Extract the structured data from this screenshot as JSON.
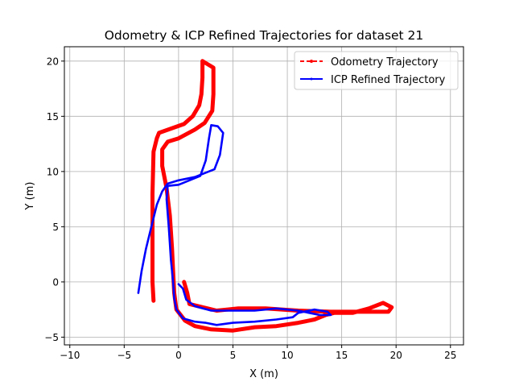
{
  "chart_data": {
    "type": "line",
    "title": "Odometry & ICP Refined Trajectories for dataset 21",
    "xlabel": "X (m)",
    "ylabel": "Y (m)",
    "xlim": [
      -10.5,
      26.2
    ],
    "ylim": [
      -5.7,
      21.3
    ],
    "xticks": [
      -10,
      -5,
      0,
      5,
      10,
      15,
      20,
      25
    ],
    "yticks": [
      -5,
      0,
      5,
      10,
      15,
      20
    ],
    "xtick_labels": [
      "−10",
      "−5",
      "0",
      "5",
      "10",
      "15",
      "20",
      "25"
    ],
    "ytick_labels": [
      "−5",
      "0",
      "5",
      "10",
      "15",
      "20"
    ],
    "grid": true,
    "legend_position": "top-right",
    "series": [
      {
        "name": "Odometry Trajectory",
        "color": "#ff0000",
        "style": "dashed-marker",
        "points": [
          [
            -2.3,
            -1.7
          ],
          [
            -2.4,
            0
          ],
          [
            -2.4,
            4
          ],
          [
            -2.4,
            8
          ],
          [
            -2.3,
            11.8
          ],
          [
            -2.0,
            13.0
          ],
          [
            -1.8,
            13.5
          ],
          [
            0.5,
            14.3
          ],
          [
            1.3,
            15.0
          ],
          [
            1.9,
            16.0
          ],
          [
            2.1,
            17.0
          ],
          [
            2.2,
            18.5
          ],
          [
            2.2,
            20.0
          ],
          [
            3.2,
            19.4
          ],
          [
            3.2,
            17.0
          ],
          [
            3.1,
            15.5
          ],
          [
            2.4,
            14.4
          ],
          [
            1.5,
            13.8
          ],
          [
            0,
            13.0
          ],
          [
            -1.0,
            12.7
          ],
          [
            -1.5,
            12.0
          ],
          [
            -1.5,
            10.5
          ],
          [
            -1.1,
            8.5
          ],
          [
            -0.8,
            6.0
          ],
          [
            -0.6,
            3.0
          ],
          [
            -0.5,
            1.0
          ],
          [
            -0.4,
            -1.0
          ],
          [
            -0.2,
            -2.5
          ],
          [
            0.6,
            -3.5
          ],
          [
            1.5,
            -4.0
          ],
          [
            3.0,
            -4.3
          ],
          [
            5.0,
            -4.4
          ],
          [
            7.0,
            -4.1
          ],
          [
            9.0,
            -4.0
          ],
          [
            11.0,
            -3.7
          ],
          [
            12.5,
            -3.4
          ],
          [
            13.5,
            -3.0
          ],
          [
            14.3,
            -2.8
          ],
          [
            16.0,
            -2.8
          ],
          [
            17.5,
            -2.4
          ],
          [
            18.8,
            -1.9
          ],
          [
            19.6,
            -2.3
          ],
          [
            19.3,
            -2.7
          ],
          [
            17.0,
            -2.7
          ],
          [
            14.0,
            -2.7
          ],
          [
            11.0,
            -2.6
          ],
          [
            8.0,
            -2.4
          ],
          [
            5.5,
            -2.4
          ],
          [
            3.5,
            -2.6
          ],
          [
            1.0,
            -2.0
          ],
          [
            0.8,
            -1.0
          ],
          [
            0.5,
            0
          ]
        ]
      },
      {
        "name": "ICP Refined Trajectory",
        "color": "#0000ff",
        "style": "solid-marker",
        "points": [
          [
            -3.7,
            -1.0
          ],
          [
            -3.4,
            1.0
          ],
          [
            -3.0,
            3.0
          ],
          [
            -2.5,
            5.0
          ],
          [
            -2.0,
            7.0
          ],
          [
            -1.5,
            8.2
          ],
          [
            -1.0,
            8.9
          ],
          [
            0,
            9.2
          ],
          [
            1.5,
            9.5
          ],
          [
            3.3,
            10.2
          ],
          [
            3.8,
            11.5
          ],
          [
            4.1,
            13.5
          ],
          [
            3.6,
            14.1
          ],
          [
            3.0,
            14.2
          ],
          [
            2.8,
            13.0
          ],
          [
            2.5,
            11.0
          ],
          [
            2.0,
            9.6
          ],
          [
            1.0,
            9.2
          ],
          [
            0,
            8.8
          ],
          [
            -1.0,
            8.7
          ],
          [
            -1.1,
            7.5
          ],
          [
            -0.9,
            5.0
          ],
          [
            -0.7,
            2.0
          ],
          [
            -0.5,
            0
          ],
          [
            -0.4,
            -1.5
          ],
          [
            -0.2,
            -2.5
          ],
          [
            0.4,
            -3.3
          ],
          [
            1.5,
            -3.6
          ],
          [
            2.5,
            -3.7
          ],
          [
            3.5,
            -3.9
          ],
          [
            5.0,
            -3.7
          ],
          [
            7.0,
            -3.6
          ],
          [
            9.0,
            -3.4
          ],
          [
            10.5,
            -3.2
          ],
          [
            11.0,
            -2.8
          ],
          [
            12.5,
            -2.5
          ],
          [
            13.7,
            -2.7
          ],
          [
            14.0,
            -3.0
          ],
          [
            13.0,
            -3.0
          ],
          [
            11.0,
            -2.6
          ],
          [
            9.0,
            -2.4
          ],
          [
            7.0,
            -2.6
          ],
          [
            5.0,
            -2.6
          ],
          [
            3.0,
            -2.6
          ],
          [
            1.5,
            -2.2
          ],
          [
            0.7,
            -1.6
          ],
          [
            0.4,
            -0.6
          ],
          [
            0,
            -0.2
          ]
        ]
      }
    ]
  }
}
